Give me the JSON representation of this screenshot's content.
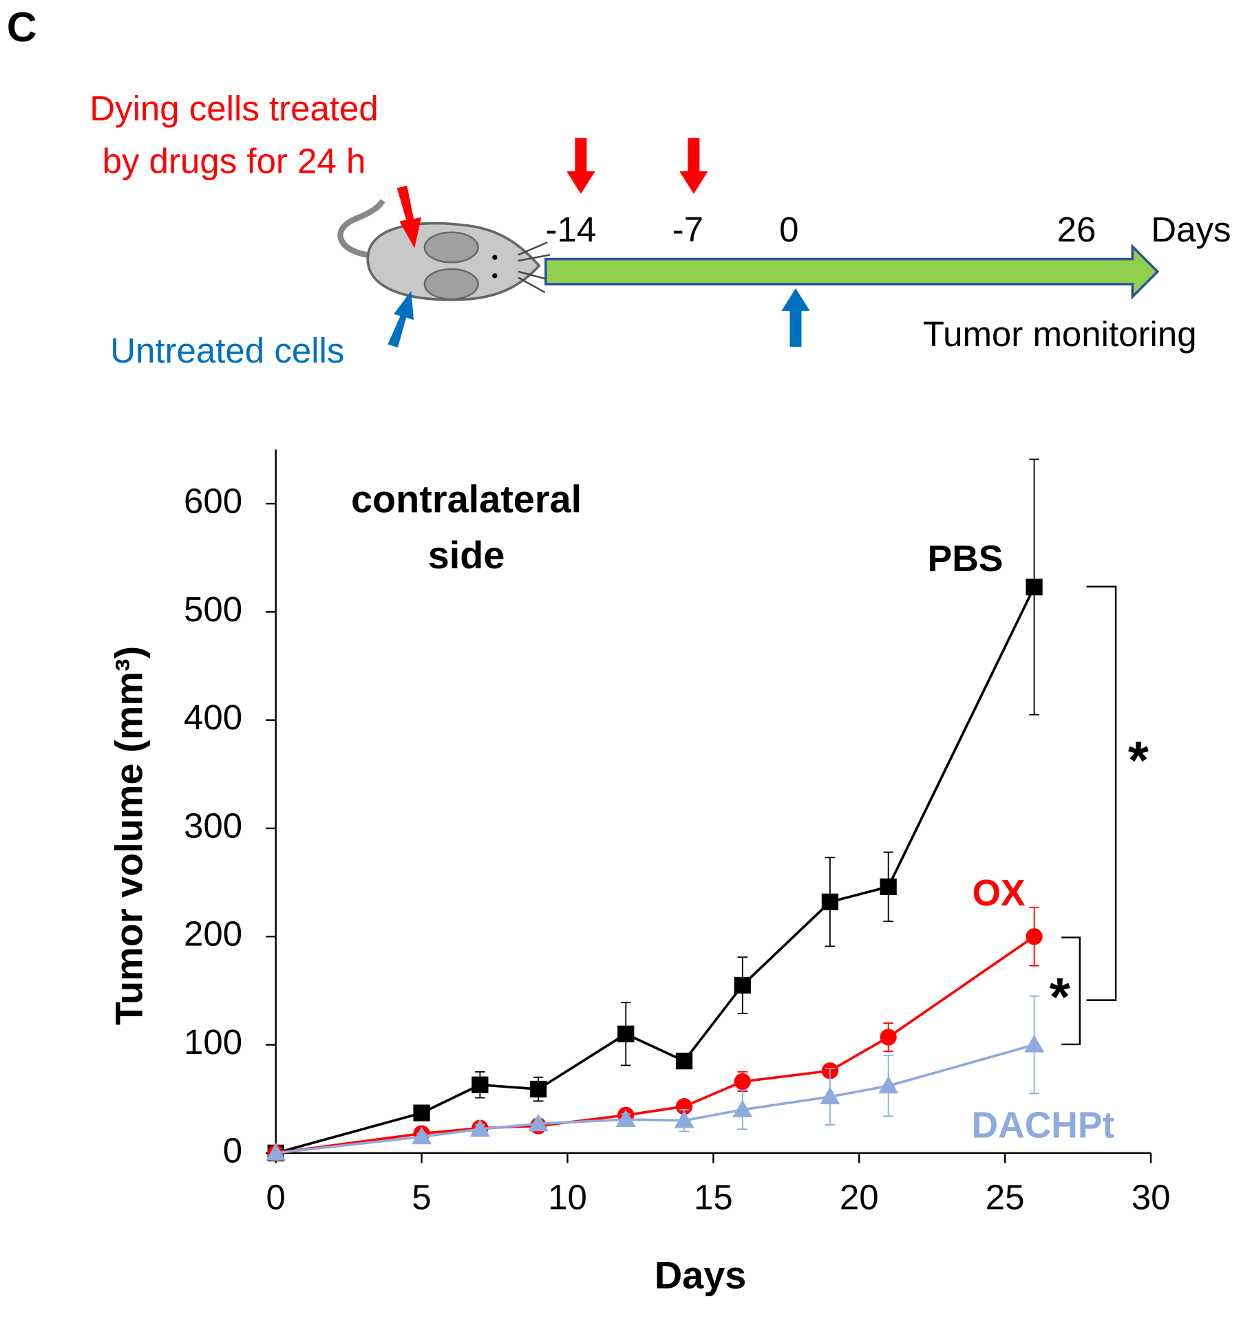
{
  "panel_label": "C",
  "schematic": {
    "treated_text": [
      "Dying cells treated",
      "by drugs for 24 h"
    ],
    "untreated_text": "Untreated cells",
    "timeline_labels": [
      "-14",
      "-7",
      "0",
      "26"
    ],
    "timeline_unit": "Days",
    "timeline_caption": "Tumor monitoring"
  },
  "chart_data": {
    "type": "line",
    "annotation": [
      "contralateral",
      "side"
    ],
    "significance": [
      "*",
      "*"
    ],
    "x_label": "Days",
    "y_label": "Tumor volume (mm³)",
    "x": [
      0,
      5,
      7,
      9,
      12,
      14,
      16,
      19,
      21,
      26
    ],
    "xlim": [
      0,
      30
    ],
    "xticks": [
      0,
      5,
      10,
      15,
      20,
      25,
      30
    ],
    "ylim": [
      0,
      650
    ],
    "yticks": [
      0,
      100,
      200,
      300,
      400,
      500,
      600
    ],
    "series": [
      {
        "name": "PBS",
        "color": "#000000",
        "marker": "square",
        "values": [
          0,
          37,
          63,
          59,
          110,
          85,
          155,
          232,
          246,
          523
        ],
        "errors": [
          0,
          3,
          12,
          11,
          29,
          6,
          26,
          41,
          32,
          118
        ]
      },
      {
        "name": "OX",
        "color": "#ff0000",
        "marker": "circle",
        "values": [
          0,
          18,
          23,
          25,
          35,
          43,
          66,
          76,
          107,
          200
        ],
        "errors": [
          0,
          3,
          4,
          4,
          4,
          3,
          9,
          3,
          13,
          27
        ]
      },
      {
        "name": "DACHPt",
        "color": "#8faadc",
        "marker": "triangle",
        "values": [
          0,
          15,
          22,
          27,
          31,
          30,
          40,
          52,
          62,
          100
        ],
        "errors": [
          0,
          3,
          4,
          5,
          5,
          10,
          18,
          26,
          28,
          45
        ]
      }
    ]
  }
}
